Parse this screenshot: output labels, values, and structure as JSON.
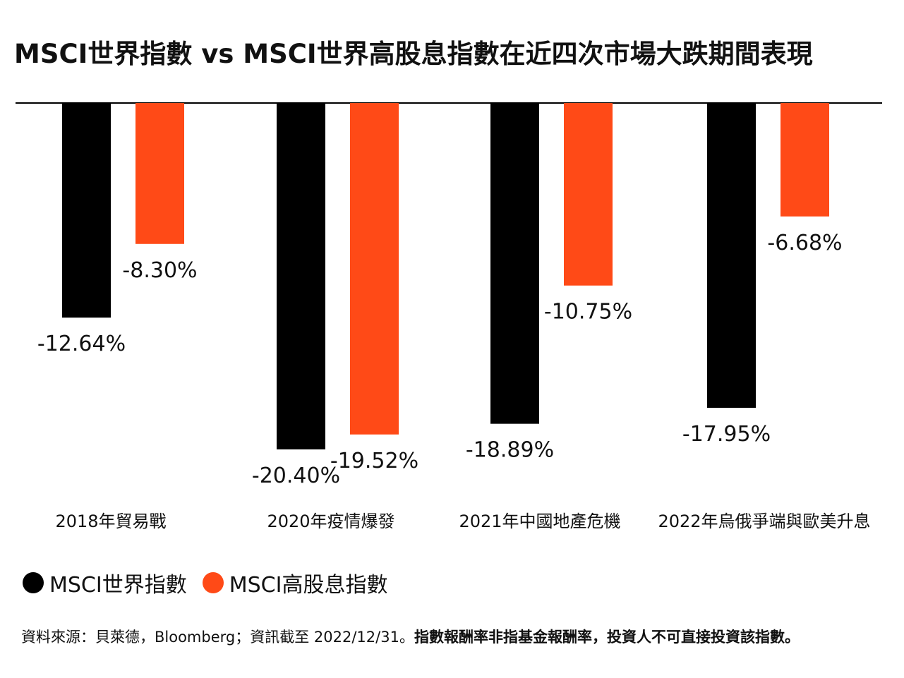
{
  "chart_data": {
    "type": "bar",
    "title": "MSCI世界指數 vs MSCI世界高股息指數在近四次市場大跌期間表現",
    "categories": [
      "2018年貿易戰",
      "2020年疫情爆發",
      "2021年中國地產危機",
      "2022年烏俄爭端與歐美升息"
    ],
    "series": [
      {
        "name": "MSCI世界指數",
        "color": "#000000",
        "values": [
          -12.64,
          -20.4,
          -18.89,
          -17.95
        ],
        "labels": [
          "-12.64%",
          "-20.40%",
          "-18.89%",
          "-17.95%"
        ]
      },
      {
        "name": "MSCI高股息指數",
        "color": "#FF4A17",
        "values": [
          -8.3,
          -19.52,
          -10.75,
          -6.68
        ],
        "labels": [
          "-8.30%",
          "-19.52%",
          "-10.75%",
          "-6.68%"
        ]
      }
    ],
    "legend_position": "bottom-left",
    "grid": false,
    "ylim": [
      -20.4,
      0
    ]
  },
  "footer": {
    "source": "資料來源：貝萊德，Bloomberg；資訊截至 2022/12/31。",
    "disclaimer": "指數報酬率非指基金報酬率，投資人不可直接投資該指數。"
  }
}
